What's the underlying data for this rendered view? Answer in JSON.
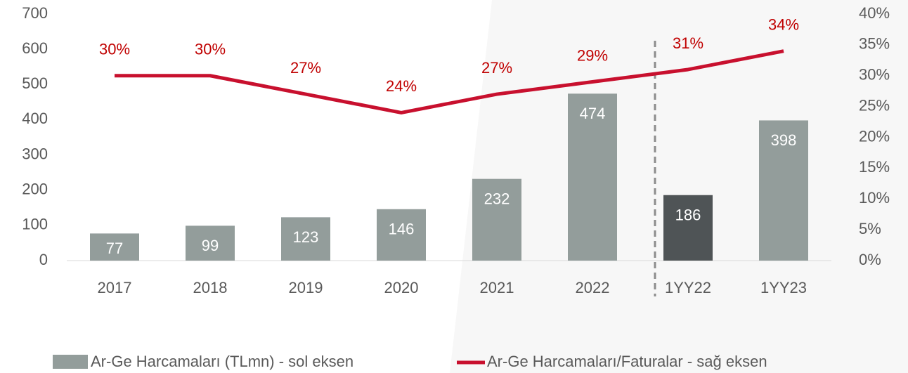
{
  "chart_data": {
    "type": "bar",
    "categories": [
      "2017",
      "2018",
      "2019",
      "2020",
      "2021",
      "2022",
      "1YY22",
      "1YY23"
    ],
    "series": [
      {
        "name": "Ar-Ge Harcamaları (TLmn) - sol eksen",
        "type": "bar",
        "color": "#939d9b",
        "colors": [
          "#939d9b",
          "#939d9b",
          "#939d9b",
          "#939d9b",
          "#939d9b",
          "#939d9b",
          "#4f5456",
          "#939d9b"
        ],
        "values": [
          77,
          99,
          123,
          146,
          232,
          474,
          186,
          398
        ]
      },
      {
        "name": "Ar-Ge Harcamaları/Faturalar - sağ eksen",
        "type": "line",
        "axis": "y2",
        "color": "#c8102e",
        "values": [
          30,
          30,
          27,
          24,
          27,
          29,
          31,
          34
        ],
        "value_labels": [
          "30%",
          "30%",
          "27%",
          "24%",
          "27%",
          "29%",
          "31%",
          "34%"
        ]
      }
    ],
    "ylim": [
      0,
      700
    ],
    "yticks": [
      0,
      100,
      200,
      300,
      400,
      500,
      600,
      700
    ],
    "y2lim": [
      0,
      40
    ],
    "y2ticks": [
      {
        "value": 0,
        "label": "0%"
      },
      {
        "value": 5,
        "label": "5%"
      },
      {
        "value": 10,
        "label": "10%"
      },
      {
        "value": 15,
        "label": "15%"
      },
      {
        "value": 20,
        "label": "20%"
      },
      {
        "value": 25,
        "label": "25%"
      },
      {
        "value": 30,
        "label": "30%"
      },
      {
        "value": 35,
        "label": "35%"
      },
      {
        "value": 40,
        "label": "40%"
      }
    ],
    "legend": "bottom"
  }
}
